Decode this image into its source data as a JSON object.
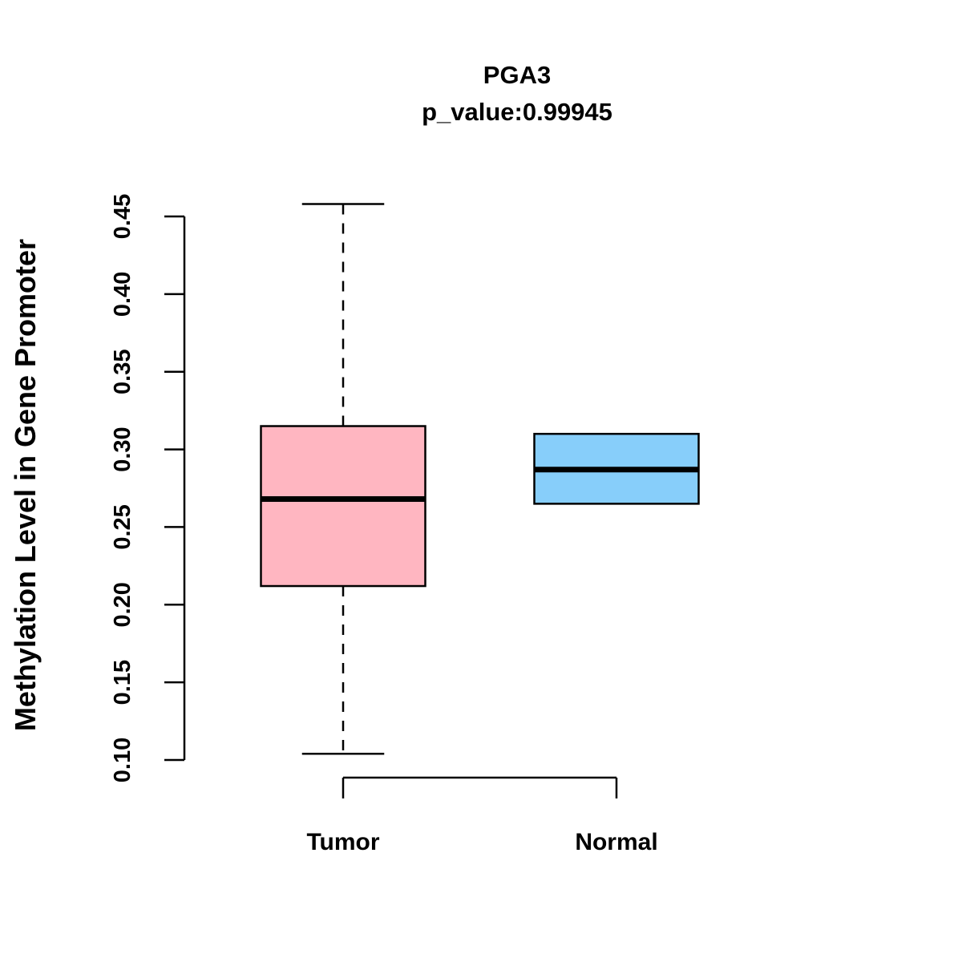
{
  "title": "PGA3",
  "subtitle": "p_value:0.99945",
  "ylabel": "Methylation Level in Gene Promoter",
  "chart_data": {
    "type": "boxplot",
    "title": "PGA3",
    "subtitle": "p_value:0.99945",
    "xlabel": "",
    "ylabel": "Methylation Level in Gene Promoter",
    "categories": [
      "Tumor",
      "Normal"
    ],
    "ylim": [
      0.1,
      0.45
    ],
    "yticks": [
      "0.10",
      "0.15",
      "0.20",
      "0.25",
      "0.30",
      "0.35",
      "0.40",
      "0.45"
    ],
    "grid": false,
    "legend": "none",
    "series": [
      {
        "name": "Tumor",
        "color": "#FFB6C1",
        "whisker_low": 0.104,
        "q1": 0.212,
        "median": 0.268,
        "q3": 0.315,
        "whisker_high": 0.458
      },
      {
        "name": "Normal",
        "color": "#87CEFA",
        "whisker_low": 0.265,
        "q1": 0.265,
        "median": 0.287,
        "q3": 0.31,
        "whisker_high": 0.31
      }
    ]
  }
}
